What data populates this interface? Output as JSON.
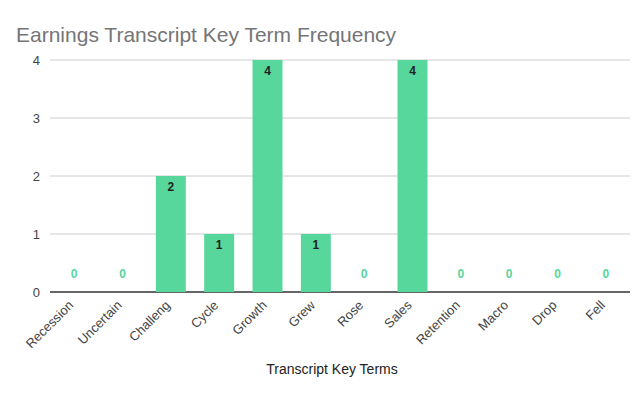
{
  "chart_data": {
    "type": "bar",
    "title": "Earnings Transcript Key Term Frequency",
    "x_label": "Transcript Key Terms",
    "categories": [
      "Recession",
      "Uncertain",
      "Challeng",
      "Cycle",
      "Growth",
      "Grew",
      "Rose",
      "Sales",
      "Retention",
      "Macro",
      "Drop",
      "Fell"
    ],
    "values": [
      0,
      0,
      2,
      1,
      4,
      1,
      0,
      4,
      0,
      0,
      0,
      0
    ],
    "color": "#57d79c",
    "ylim": [
      0,
      4
    ],
    "yticks": [
      0,
      1,
      2,
      3,
      4
    ],
    "grid": true,
    "data_labels": true
  }
}
